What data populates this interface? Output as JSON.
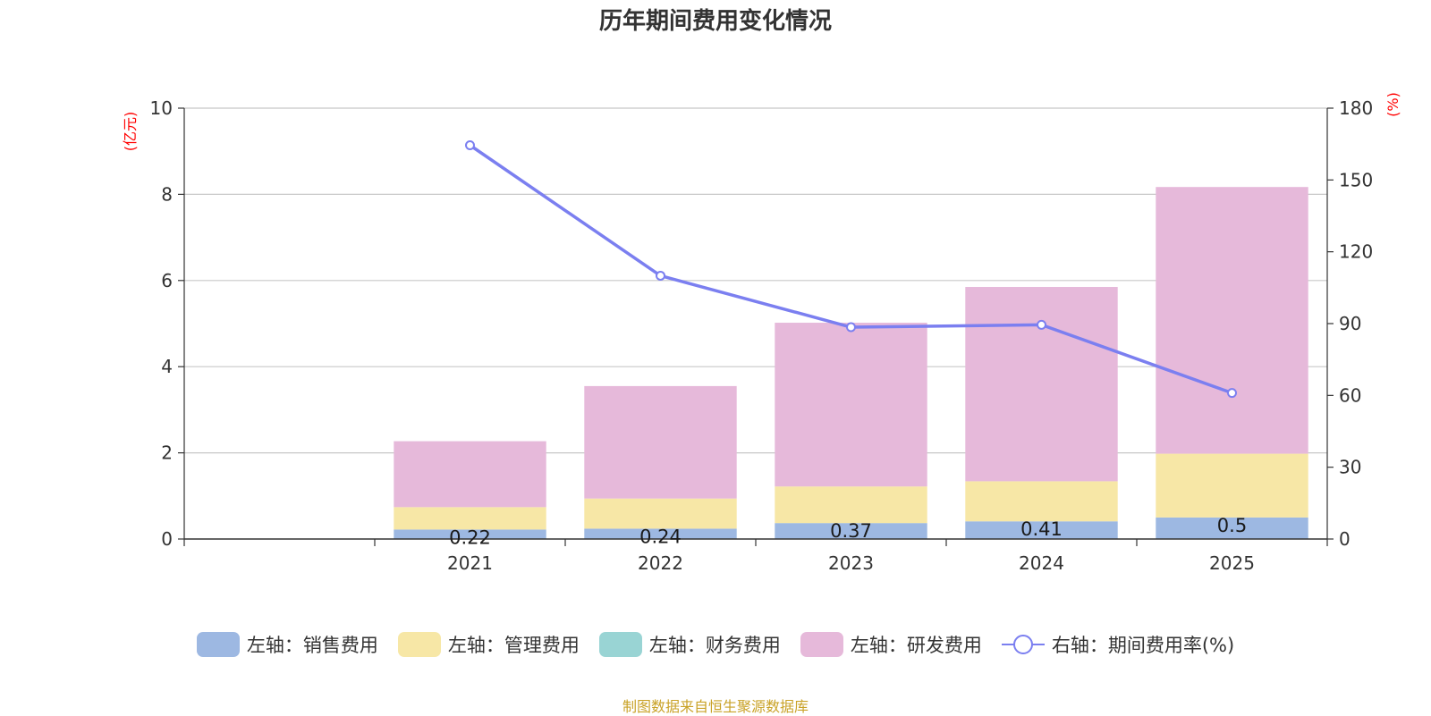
{
  "chart_data": {
    "type": "bar",
    "title": "历年期间费用变化情况",
    "categories": [
      "",
      "2021",
      "2022",
      "2023",
      "2024",
      "2025"
    ],
    "left_axis": {
      "unit": "(亿元)",
      "ylim": [
        0,
        10
      ],
      "ticks": [
        0,
        2,
        4,
        6,
        8,
        10
      ]
    },
    "right_axis": {
      "unit": "(%)",
      "ylim": [
        0,
        180
      ],
      "ticks": [
        0,
        30,
        60,
        90,
        120,
        150,
        180
      ]
    },
    "series": [
      {
        "name": "左轴：销售费用",
        "axis": "left",
        "stack": true,
        "color": "#9db8e2",
        "values": [
          null,
          0.22,
          0.24,
          0.37,
          0.41,
          0.5
        ],
        "labels": [
          null,
          "0.22",
          "0.24",
          "0.37",
          "0.41",
          "0.5"
        ]
      },
      {
        "name": "左轴：管理费用",
        "axis": "left",
        "stack": true,
        "color": "#f7e7a6",
        "values": [
          null,
          0.52,
          0.7,
          0.85,
          0.93,
          1.48
        ]
      },
      {
        "name": "左轴：财务费用",
        "axis": "left",
        "stack": true,
        "color": "#99d4d4",
        "values": [
          null,
          0.0,
          0.0,
          0.0,
          0.0,
          0.0
        ]
      },
      {
        "name": "左轴：研发费用",
        "axis": "left",
        "stack": true,
        "color": "#e6b9da",
        "values": [
          null,
          1.53,
          2.61,
          3.8,
          4.51,
          6.19
        ]
      },
      {
        "name": "右轴：期间费用率(%)",
        "axis": "right",
        "type": "line",
        "color": "#7b7ff0",
        "values": [
          null,
          164.5,
          110.0,
          88.5,
          89.5,
          61.0
        ]
      }
    ],
    "grid": true
  },
  "source": "制图数据来自恒生聚源数据库"
}
